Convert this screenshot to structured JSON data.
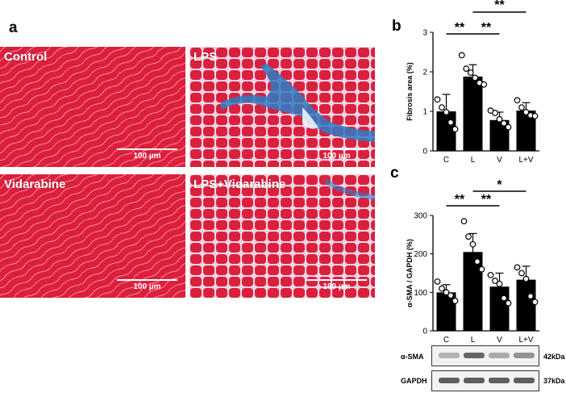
{
  "panel_labels": {
    "a": "a",
    "b": "b",
    "c": "c"
  },
  "micrographs": [
    {
      "label": "Control",
      "scale": "100 µm"
    },
    {
      "label": "LPS",
      "scale": "100 µm"
    },
    {
      "label": "Vidarabine",
      "scale": "100 µm"
    },
    {
      "label": "LPS+Vidarabine",
      "scale": "100 µm"
    }
  ],
  "colors": {
    "muscle": "#dd1f3c",
    "fibrosis": "#2f7bc4",
    "bar": "#000000"
  },
  "chart_data": [
    {
      "type": "bar",
      "ylabel": "Fibrosis area (%)",
      "categories": [
        "C",
        "L",
        "V",
        "L+V"
      ],
      "values": [
        1.0,
        1.88,
        0.78,
        1.02
      ],
      "errors": [
        0.43,
        0.3,
        0.2,
        0.2
      ],
      "points": [
        [
          1.3,
          1.1,
          0.98,
          0.72,
          0.55
        ],
        [
          2.42,
          2.08,
          1.98,
          1.85,
          1.72,
          1.68
        ],
        [
          1.02,
          0.96,
          0.8,
          0.7,
          0.6
        ],
        [
          1.28,
          1.1,
          0.98,
          0.9,
          0.88
        ]
      ],
      "ylim": [
        0,
        3
      ],
      "yticks": [
        "0",
        "1",
        "2",
        "3"
      ],
      "significance": [
        {
          "from": 0,
          "to": 1,
          "label": "**",
          "level": 0
        },
        {
          "from": 1,
          "to": 2,
          "label": "**",
          "level": 0
        },
        {
          "from": 1,
          "to": 3,
          "label": "**",
          "level": 1
        }
      ]
    },
    {
      "type": "bar",
      "ylabel": "α-SMA / GAPDH (%)",
      "categories": [
        "C",
        "L",
        "V",
        "L+V"
      ],
      "values": [
        100,
        205,
        115,
        133
      ],
      "errors": [
        20,
        48,
        35,
        35
      ],
      "points": [
        [
          128,
          110,
          100,
          92,
          78
        ],
        [
          285,
          245,
          225,
          180,
          160
        ],
        [
          145,
          130,
          122,
          85,
          72
        ],
        [
          165,
          150,
          135,
          90,
          75
        ]
      ],
      "ylim": [
        0,
        300
      ],
      "yticks": [
        "0",
        "100",
        "200",
        "300"
      ],
      "significance": [
        {
          "from": 0,
          "to": 1,
          "label": "**",
          "level": 0
        },
        {
          "from": 1,
          "to": 2,
          "label": "**",
          "level": 0
        },
        {
          "from": 1,
          "to": 3,
          "label": "*",
          "level": 1
        }
      ]
    }
  ],
  "blots": [
    {
      "name": "α-SMA",
      "kda": "42kDa",
      "intensities": [
        0.35,
        0.85,
        0.4,
        0.55
      ]
    },
    {
      "name": "GAPDH",
      "kda": "37kDa",
      "intensities": [
        0.9,
        0.9,
        0.9,
        0.9
      ]
    }
  ]
}
